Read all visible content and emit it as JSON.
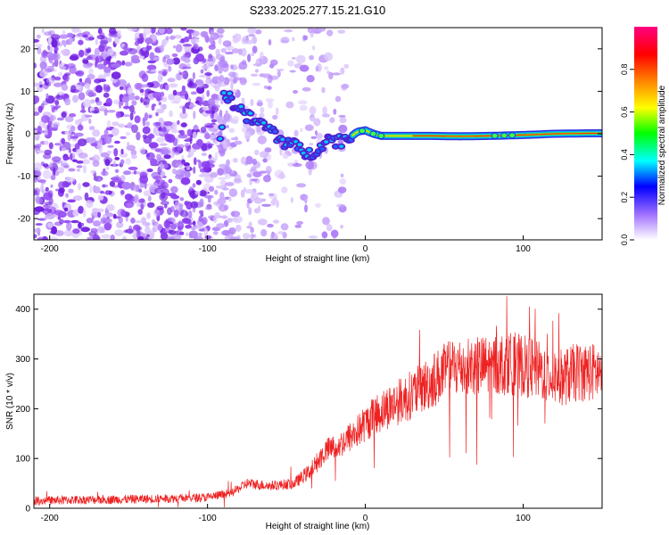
{
  "title": "S233.2025.277.15.21.G10",
  "chart_data": [
    {
      "type": "heatmap",
      "xlabel": "Height of straight line (km)",
      "ylabel": "Frequency (Hz)",
      "xlim": [
        -210,
        150
      ],
      "ylim": [
        -25,
        25
      ],
      "xticks": [
        -200,
        -100,
        0,
        100
      ],
      "yticks": [
        -20,
        -10,
        0,
        10,
        20
      ],
      "colorbar": {
        "label": "Normalized spectral amplitude",
        "range": [
          0,
          1
        ],
        "ticks": [
          "0.0",
          "0.2",
          "0.4",
          "0.6",
          "0.8"
        ],
        "colormap": [
          "#ffffff",
          "#a070ff",
          "#0000ff",
          "#00ffff",
          "#00ff00",
          "#ffff00",
          "#ff7f00",
          "#ff0000",
          "#ff0080"
        ]
      },
      "ridge": [
        {
          "x": -90,
          "y": 9.5
        },
        {
          "x": -85,
          "y": 8
        },
        {
          "x": -80,
          "y": 6
        },
        {
          "x": -75,
          "y": 4
        },
        {
          "x": -70,
          "y": 3
        },
        {
          "x": -65,
          "y": 2
        },
        {
          "x": -60,
          "y": 1
        },
        {
          "x": -55,
          "y": -1
        },
        {
          "x": -50,
          "y": -2
        },
        {
          "x": -45,
          "y": -3
        },
        {
          "x": -40,
          "y": -4
        },
        {
          "x": -35,
          "y": -5
        },
        {
          "x": -30,
          "y": -3
        },
        {
          "x": -25,
          "y": -1.5
        },
        {
          "x": -20,
          "y": -1.5
        },
        {
          "x": -15,
          "y": -1.5
        },
        {
          "x": -10,
          "y": -1
        },
        {
          "x": -5,
          "y": 0.5
        },
        {
          "x": 0,
          "y": 0.8
        },
        {
          "x": 5,
          "y": 0
        },
        {
          "x": 10,
          "y": -0.5
        },
        {
          "x": 20,
          "y": -0.5
        },
        {
          "x": 40,
          "y": -0.5
        },
        {
          "x": 60,
          "y": -0.6
        },
        {
          "x": 80,
          "y": -0.5
        },
        {
          "x": 90,
          "y": -0.4
        },
        {
          "x": 100,
          "y": -0.3
        },
        {
          "x": 120,
          "y": 0
        },
        {
          "x": 140,
          "y": 0.1
        },
        {
          "x": 150,
          "y": 0.1
        }
      ]
    },
    {
      "type": "line",
      "xlabel": "Height of straight line (km)",
      "ylabel": "SNR (10 * v/v)",
      "xlim": [
        -210,
        150
      ],
      "ylim": [
        0,
        430
      ],
      "xticks": [
        -200,
        -100,
        0,
        100
      ],
      "yticks": [
        0,
        100,
        200,
        300,
        400
      ],
      "series": [
        {
          "name": "SNR",
          "color": "#ee2222",
          "trend": [
            {
              "x": -210,
              "y": 15
            },
            {
              "x": -180,
              "y": 17
            },
            {
              "x": -150,
              "y": 18
            },
            {
              "x": -120,
              "y": 20
            },
            {
              "x": -100,
              "y": 22
            },
            {
              "x": -85,
              "y": 30
            },
            {
              "x": -75,
              "y": 50
            },
            {
              "x": -60,
              "y": 45
            },
            {
              "x": -45,
              "y": 50
            },
            {
              "x": -35,
              "y": 75
            },
            {
              "x": -25,
              "y": 115
            },
            {
              "x": -15,
              "y": 130
            },
            {
              "x": -5,
              "y": 155
            },
            {
              "x": 5,
              "y": 185
            },
            {
              "x": 15,
              "y": 205
            },
            {
              "x": 25,
              "y": 220
            },
            {
              "x": 35,
              "y": 240
            },
            {
              "x": 45,
              "y": 262
            },
            {
              "x": 55,
              "y": 282
            },
            {
              "x": 65,
              "y": 285
            },
            {
              "x": 75,
              "y": 285
            },
            {
              "x": 85,
              "y": 290
            },
            {
              "x": 95,
              "y": 290
            },
            {
              "x": 105,
              "y": 282
            },
            {
              "x": 115,
              "y": 270
            },
            {
              "x": 125,
              "y": 262
            },
            {
              "x": 135,
              "y": 275
            },
            {
              "x": 150,
              "y": 272
            }
          ]
        }
      ]
    }
  ]
}
